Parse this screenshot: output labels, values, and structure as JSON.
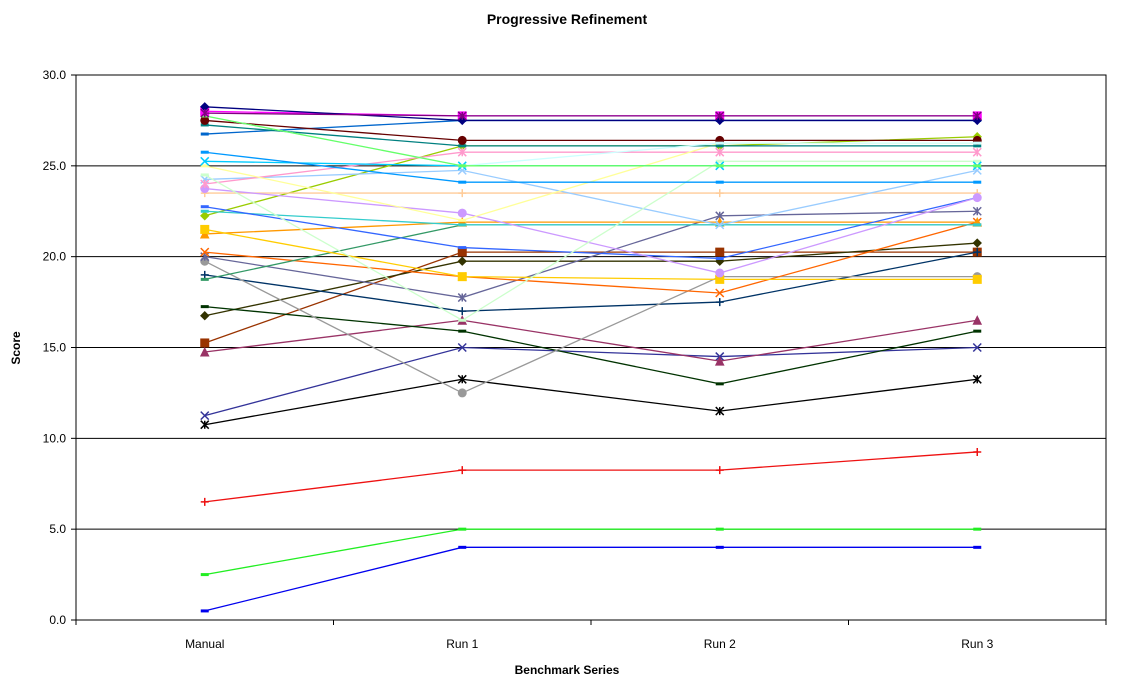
{
  "chart_data": {
    "type": "line",
    "title": "Progressive Refinement",
    "xlabel": "Benchmark Series",
    "ylabel": "Score",
    "categories": [
      "Manual",
      "Run 1",
      "Run 2",
      "Run 3"
    ],
    "ylim": [
      0,
      30
    ],
    "yticks": [
      "0.0",
      "5.0",
      "10.0",
      "15.0",
      "20.0",
      "25.0",
      "30.0"
    ],
    "grid": "horizontal",
    "legend": "none",
    "series": [
      {
        "values": [
          0.5,
          4.0,
          4.0,
          4.0
        ],
        "color": "#0000ee",
        "marker": "dash"
      },
      {
        "values": [
          2.5,
          5.0,
          5.0,
          5.0
        ],
        "color": "#22ee22",
        "marker": "dash"
      },
      {
        "values": [
          6.5,
          8.25,
          8.25,
          9.25
        ],
        "color": "#ee1111",
        "marker": "plus"
      },
      {
        "values": [
          10.75,
          13.25,
          11.5,
          13.25
        ],
        "color": "#000000",
        "marker": "x-star"
      },
      {
        "values": [
          11.25,
          15.0,
          14.5,
          15.0
        ],
        "color": "#333399",
        "marker": "x"
      },
      {
        "values": [
          14.75,
          16.5,
          14.25,
          16.5
        ],
        "color": "#993366",
        "marker": "triangle"
      },
      {
        "values": [
          15.25,
          20.25,
          20.25,
          20.25
        ],
        "color": "#993300",
        "marker": "square"
      },
      {
        "values": [
          16.75,
          19.75,
          19.75,
          20.75
        ],
        "color": "#333300",
        "marker": "diamond"
      },
      {
        "values": [
          17.25,
          15.9,
          13.0,
          15.9
        ],
        "color": "#003300",
        "marker": "dash"
      },
      {
        "values": [
          19.0,
          17.0,
          17.5,
          20.25
        ],
        "color": "#003366",
        "marker": "plus"
      },
      {
        "values": [
          19.75,
          12.5,
          18.9,
          18.9
        ],
        "color": "#999999",
        "marker": "circle"
      },
      {
        "values": [
          20.0,
          17.75,
          22.25,
          22.5
        ],
        "color": "#666699",
        "marker": "x-star"
      },
      {
        "values": [
          20.25,
          18.9,
          18.0,
          21.9
        ],
        "color": "#ff6600",
        "marker": "x"
      },
      {
        "values": [
          18.75,
          21.75,
          21.75,
          21.75
        ],
        "color": "#339966",
        "marker": "dash"
      },
      {
        "values": [
          21.25,
          21.9,
          21.9,
          21.9
        ],
        "color": "#ff9900",
        "marker": "triangle"
      },
      {
        "values": [
          21.5,
          18.9,
          18.75,
          18.75
        ],
        "color": "#ffcc00",
        "marker": "square"
      },
      {
        "values": [
          22.25,
          26.1,
          26.1,
          26.6
        ],
        "color": "#99cc00",
        "marker": "diamond"
      },
      {
        "values": [
          22.5,
          21.75,
          21.75,
          21.75
        ],
        "color": "#33cccc",
        "marker": "dash"
      },
      {
        "values": [
          22.75,
          20.5,
          19.9,
          23.25
        ],
        "color": "#3366ff",
        "marker": "dash"
      },
      {
        "values": [
          23.5,
          23.5,
          23.5,
          23.5
        ],
        "color": "#ffcc99",
        "marker": "plus"
      },
      {
        "values": [
          23.75,
          22.4,
          19.1,
          23.25
        ],
        "color": "#cc99ff",
        "marker": "circle"
      },
      {
        "values": [
          24.25,
          24.75,
          21.75,
          24.75
        ],
        "color": "#99ccff",
        "marker": "x"
      },
      {
        "values": [
          24.0,
          25.75,
          25.75,
          25.75
        ],
        "color": "#ff99cc",
        "marker": "x-star"
      },
      {
        "values": [
          24.5,
          16.5,
          25.25,
          25.25
        ],
        "color": "#ccffcc",
        "marker": "dash"
      },
      {
        "values": [
          25.0,
          22.0,
          26.25,
          26.25
        ],
        "color": "#ffff99",
        "marker": "dash"
      },
      {
        "values": [
          25.25,
          25.0,
          25.0,
          25.0
        ],
        "color": "#00ccff",
        "marker": "x"
      },
      {
        "values": [
          25.75,
          24.1,
          24.1,
          24.1
        ],
        "color": "#0099ff",
        "marker": "dash"
      },
      {
        "values": [
          26.75,
          27.5,
          27.5,
          27.5
        ],
        "color": "#0066cc",
        "marker": "dash"
      },
      {
        "values": [
          27.25,
          26.1,
          26.1,
          26.1
        ],
        "color": "#008080",
        "marker": "dash"
      },
      {
        "values": [
          27.5,
          26.4,
          26.4,
          26.4
        ],
        "color": "#660000",
        "marker": "circle"
      },
      {
        "values": [
          27.75,
          25.0,
          26.25,
          26.25
        ],
        "color": "#ccffff",
        "marker": "dash"
      },
      {
        "values": [
          27.75,
          25.0,
          25.0,
          25.0
        ],
        "color": "#66ff66",
        "marker": "dash"
      },
      {
        "values": [
          28.0,
          27.75,
          27.75,
          27.75
        ],
        "color": "#ff00ff",
        "marker": "square"
      },
      {
        "values": [
          28.25,
          27.5,
          27.5,
          27.5
        ],
        "color": "#000080",
        "marker": "diamond"
      },
      {
        "values": [
          27.9,
          27.75,
          27.75,
          27.75
        ],
        "color": "#800080",
        "marker": "x-star"
      }
    ]
  }
}
